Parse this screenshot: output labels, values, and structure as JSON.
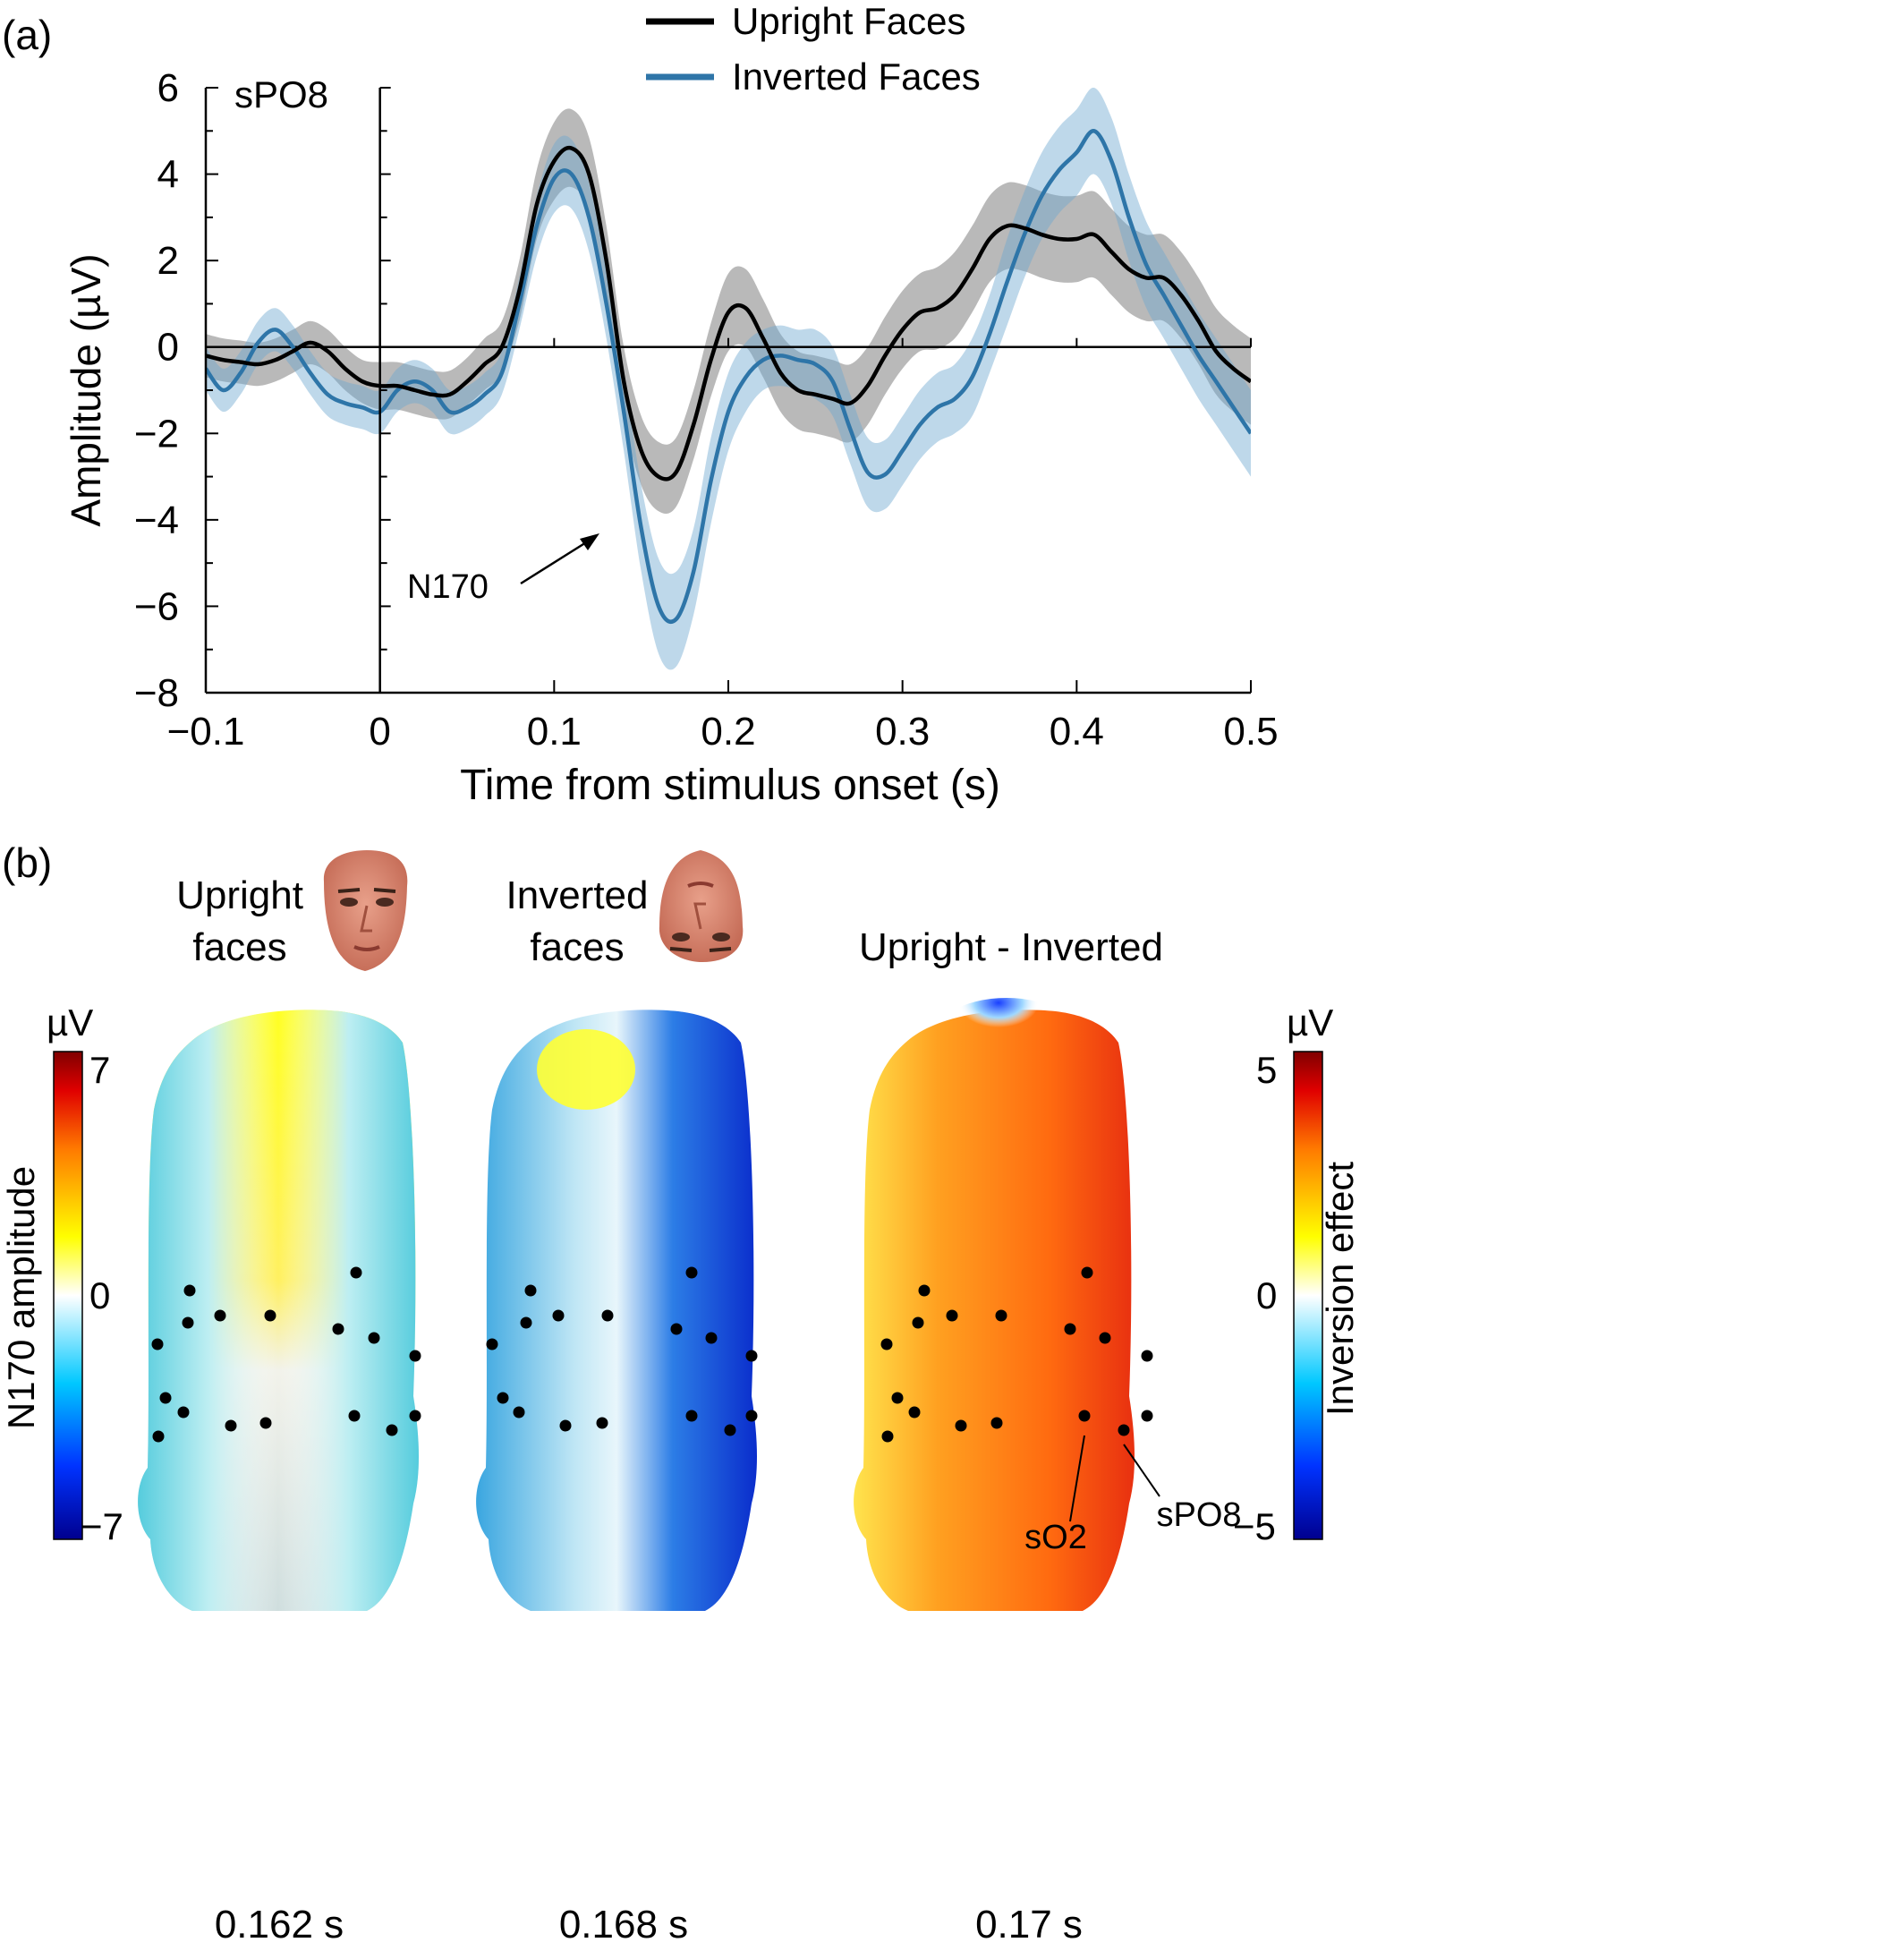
{
  "panel_a": {
    "label": "(a)",
    "channel_label": "sPO8",
    "annotation": "N170"
  },
  "panel_b": {
    "label": "(b)",
    "maps": [
      {
        "title_line1": "Upright",
        "title_line2": "faces",
        "time_label": "0.162 s"
      },
      {
        "title_line1": "Inverted",
        "title_line2": "faces",
        "time_label": "0.168 s"
      },
      {
        "title_line1": "Upright - Inverted",
        "title_line2": "",
        "time_label": "0.17 s"
      }
    ],
    "electrode_labels": [
      "sO2",
      "sPO8"
    ],
    "left_colorbar": {
      "title": "N170 amplitude",
      "unit": "µV",
      "max_label": "7",
      "mid_label": "0",
      "min_label": "−7",
      "range": [
        -7,
        7
      ]
    },
    "right_colorbar": {
      "title": "Inversion effect",
      "unit": "µV",
      "max_label": "5",
      "mid_label": "0",
      "min_label": "−5",
      "range": [
        -5,
        5
      ]
    }
  },
  "chart_data": {
    "type": "line",
    "xlabel": "Time from stimulus onset (s)",
    "ylabel": "Amplitude (µV)",
    "xlim": [
      -0.1,
      0.5
    ],
    "ylim": [
      -8,
      6
    ],
    "x_ticks": [
      -0.1,
      0,
      0.1,
      0.2,
      0.3,
      0.4,
      0.5
    ],
    "x_tick_labels": [
      "−0.1",
      "0",
      "0.1",
      "0.2",
      "0.3",
      "0.4",
      "0.5"
    ],
    "y_ticks": [
      -8,
      -6,
      -4,
      -2,
      0,
      2,
      4,
      6
    ],
    "y_tick_labels": [
      "−8",
      "−6",
      "−4",
      "−2",
      "0",
      "2",
      "4",
      "6"
    ],
    "legend_position": "top",
    "series": [
      {
        "name": "Upright Faces",
        "color": "#000000",
        "band_color": "#7f7f7f",
        "x": [
          -0.1,
          -0.09,
          -0.08,
          -0.07,
          -0.06,
          -0.05,
          -0.04,
          -0.03,
          -0.02,
          -0.01,
          0,
          0.01,
          0.02,
          0.03,
          0.04,
          0.05,
          0.06,
          0.07,
          0.08,
          0.09,
          0.1,
          0.11,
          0.12,
          0.13,
          0.14,
          0.15,
          0.16,
          0.17,
          0.18,
          0.19,
          0.2,
          0.21,
          0.22,
          0.23,
          0.24,
          0.25,
          0.26,
          0.27,
          0.28,
          0.29,
          0.3,
          0.31,
          0.32,
          0.33,
          0.34,
          0.35,
          0.36,
          0.37,
          0.38,
          0.39,
          0.4,
          0.41,
          0.42,
          0.43,
          0.44,
          0.45,
          0.46,
          0.47,
          0.48,
          0.49,
          0.5
        ],
        "y": [
          -0.2,
          -0.3,
          -0.35,
          -0.4,
          -0.3,
          -0.1,
          0.1,
          -0.1,
          -0.5,
          -0.8,
          -0.9,
          -0.9,
          -1.0,
          -1.1,
          -1.1,
          -0.8,
          -0.4,
          0.0,
          1.3,
          3.3,
          4.3,
          4.6,
          4.0,
          2.0,
          -0.8,
          -2.4,
          -3.0,
          -2.9,
          -1.8,
          -0.3,
          0.8,
          0.9,
          0.2,
          -0.6,
          -1.0,
          -1.1,
          -1.2,
          -1.3,
          -0.9,
          -0.2,
          0.4,
          0.8,
          0.9,
          1.2,
          1.8,
          2.5,
          2.8,
          2.75,
          2.6,
          2.5,
          2.5,
          2.6,
          2.2,
          1.8,
          1.6,
          1.6,
          1.2,
          0.6,
          -0.1,
          -0.5,
          -0.8
        ],
        "error": [
          0.5,
          0.5,
          0.5,
          0.5,
          0.5,
          0.5,
          0.5,
          0.5,
          0.5,
          0.5,
          0.55,
          0.55,
          0.55,
          0.55,
          0.55,
          0.55,
          0.6,
          0.6,
          0.7,
          0.8,
          0.9,
          0.9,
          0.85,
          0.8,
          0.8,
          0.8,
          0.8,
          0.8,
          0.8,
          0.85,
          0.9,
          0.9,
          0.9,
          0.9,
          0.9,
          0.9,
          0.9,
          0.9,
          0.9,
          0.9,
          0.9,
          0.9,
          0.95,
          1.0,
          1.0,
          1.0,
          1.0,
          1.0,
          1.0,
          1.0,
          1.0,
          1.0,
          1.0,
          1.0,
          1.0,
          1.0,
          1.0,
          1.0,
          1.0,
          1.0,
          1.0
        ]
      },
      {
        "name": "Inverted Faces",
        "color": "#2e75a8",
        "band_color": "#6fa8d0",
        "x": [
          -0.1,
          -0.09,
          -0.08,
          -0.07,
          -0.06,
          -0.05,
          -0.04,
          -0.03,
          -0.02,
          -0.01,
          0,
          0.01,
          0.02,
          0.03,
          0.04,
          0.05,
          0.06,
          0.07,
          0.08,
          0.09,
          0.1,
          0.11,
          0.12,
          0.13,
          0.14,
          0.15,
          0.16,
          0.17,
          0.18,
          0.19,
          0.2,
          0.21,
          0.22,
          0.23,
          0.24,
          0.25,
          0.26,
          0.27,
          0.28,
          0.29,
          0.3,
          0.31,
          0.32,
          0.33,
          0.34,
          0.35,
          0.36,
          0.37,
          0.38,
          0.39,
          0.4,
          0.41,
          0.42,
          0.43,
          0.44,
          0.45,
          0.46,
          0.47,
          0.48,
          0.49,
          0.5
        ],
        "y": [
          -0.5,
          -1.0,
          -0.6,
          0.1,
          0.4,
          0.0,
          -0.6,
          -1.1,
          -1.3,
          -1.4,
          -1.5,
          -1.0,
          -0.8,
          -1.0,
          -1.5,
          -1.4,
          -1.1,
          -0.6,
          1.0,
          2.8,
          3.9,
          4.0,
          3.0,
          1.0,
          -1.5,
          -4.2,
          -6.0,
          -6.3,
          -5.2,
          -3.1,
          -1.5,
          -0.7,
          -0.3,
          -0.2,
          -0.3,
          -0.4,
          -0.8,
          -1.9,
          -2.9,
          -2.95,
          -2.4,
          -1.8,
          -1.4,
          -1.2,
          -0.7,
          0.3,
          1.5,
          2.6,
          3.5,
          4.1,
          4.5,
          5.0,
          4.3,
          3.0,
          1.9,
          1.2,
          0.5,
          -0.2,
          -0.8,
          -1.4,
          -2.0
        ],
        "error": [
          0.5,
          0.5,
          0.5,
          0.5,
          0.5,
          0.5,
          0.5,
          0.5,
          0.5,
          0.5,
          0.5,
          0.5,
          0.5,
          0.5,
          0.5,
          0.5,
          0.5,
          0.5,
          0.6,
          0.7,
          0.8,
          0.8,
          0.8,
          0.8,
          0.9,
          1.0,
          1.1,
          1.1,
          1.0,
          1.0,
          0.9,
          0.8,
          0.7,
          0.7,
          0.7,
          0.8,
          0.8,
          0.8,
          0.8,
          0.8,
          0.8,
          0.8,
          0.8,
          0.8,
          0.9,
          0.9,
          1.0,
          1.0,
          1.0,
          1.0,
          1.0,
          1.0,
          1.0,
          1.0,
          1.0,
          1.0,
          1.0,
          1.0,
          1.0,
          1.0,
          1.0
        ]
      }
    ]
  }
}
